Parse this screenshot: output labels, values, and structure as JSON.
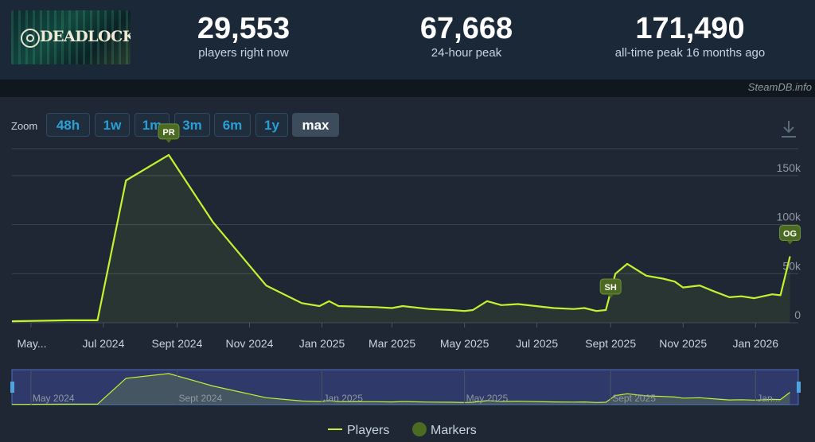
{
  "header": {
    "logo_text": "DEADLOCK",
    "stats": [
      {
        "value": "29,553",
        "label": "players right now"
      },
      {
        "value": "67,668",
        "label": "24-hour peak"
      },
      {
        "value": "171,490",
        "label": "all-time peak 16 months ago"
      }
    ],
    "credit": "SteamDB.info"
  },
  "zoom": {
    "label": "Zoom",
    "buttons": [
      "48h",
      "1w",
      "1m",
      "3m",
      "6m",
      "1y",
      "max"
    ],
    "active": "max"
  },
  "colors": {
    "series": "#c3f232",
    "marker": "#4c6b22",
    "grid": "#3a4654",
    "active_zoom": "#3d4c5c",
    "zoom_text": "#2a9fd6",
    "navigator_bg": "#2f3a6b"
  },
  "icons": {
    "download": "download-icon"
  },
  "chart_data": {
    "type": "line",
    "series": [
      {
        "name": "Players",
        "x": [
          "2024-04-15",
          "2024-06-01",
          "2024-06-26",
          "2024-07-20",
          "2024-08-25",
          "2024-10-01",
          "2024-11-15",
          "2024-12-15",
          "2024-12-30",
          "2025-01-07",
          "2025-01-15",
          "2025-02-15",
          "2025-03-01",
          "2025-03-10",
          "2025-04-01",
          "2025-04-20",
          "2025-05-01",
          "2025-05-08",
          "2025-05-20",
          "2025-06-01",
          "2025-06-15",
          "2025-07-15",
          "2025-08-01",
          "2025-08-10",
          "2025-08-20",
          "2025-08-28",
          "2025-09-05",
          "2025-09-15",
          "2025-10-01",
          "2025-10-15",
          "2025-10-25",
          "2025-11-01",
          "2025-11-15",
          "2025-11-25",
          "2025-12-10",
          "2025-12-20",
          "2025-12-31",
          "2026-01-15",
          "2026-01-22",
          "2026-01-30"
        ],
        "y": [
          1500,
          2500,
          2500,
          145000,
          171000,
          103000,
          38000,
          20000,
          17000,
          22000,
          17000,
          16000,
          15000,
          17000,
          14000,
          13000,
          12000,
          13000,
          22000,
          18000,
          19000,
          15000,
          14000,
          15000,
          12000,
          13000,
          50000,
          60000,
          48000,
          45000,
          42000,
          36000,
          38000,
          33000,
          26000,
          27000,
          25000,
          29000,
          28000,
          67668
        ]
      }
    ],
    "markers": [
      {
        "label": "PR",
        "x": "2024-08-25"
      },
      {
        "label": "SH",
        "x": "2025-09-01"
      },
      {
        "label": "OG",
        "x": "2026-01-30"
      }
    ],
    "x_ticks": [
      "May...",
      "Jul 2024",
      "Sept 2024",
      "Nov 2024",
      "Jan 2025",
      "Mar 2025",
      "May 2025",
      "Jul 2025",
      "Sept 2025",
      "Nov 2025",
      "Jan 2026"
    ],
    "y_ticks": [
      "0",
      "50k",
      "100k",
      "150k"
    ],
    "ylim": [
      0,
      175000
    ],
    "navigator_ticks": [
      "May 2024",
      "Sept 2024",
      "Jan 2025",
      "May 2025",
      "Sept 2025",
      "Jan..."
    ],
    "legend": [
      "Players",
      "Markers"
    ]
  }
}
